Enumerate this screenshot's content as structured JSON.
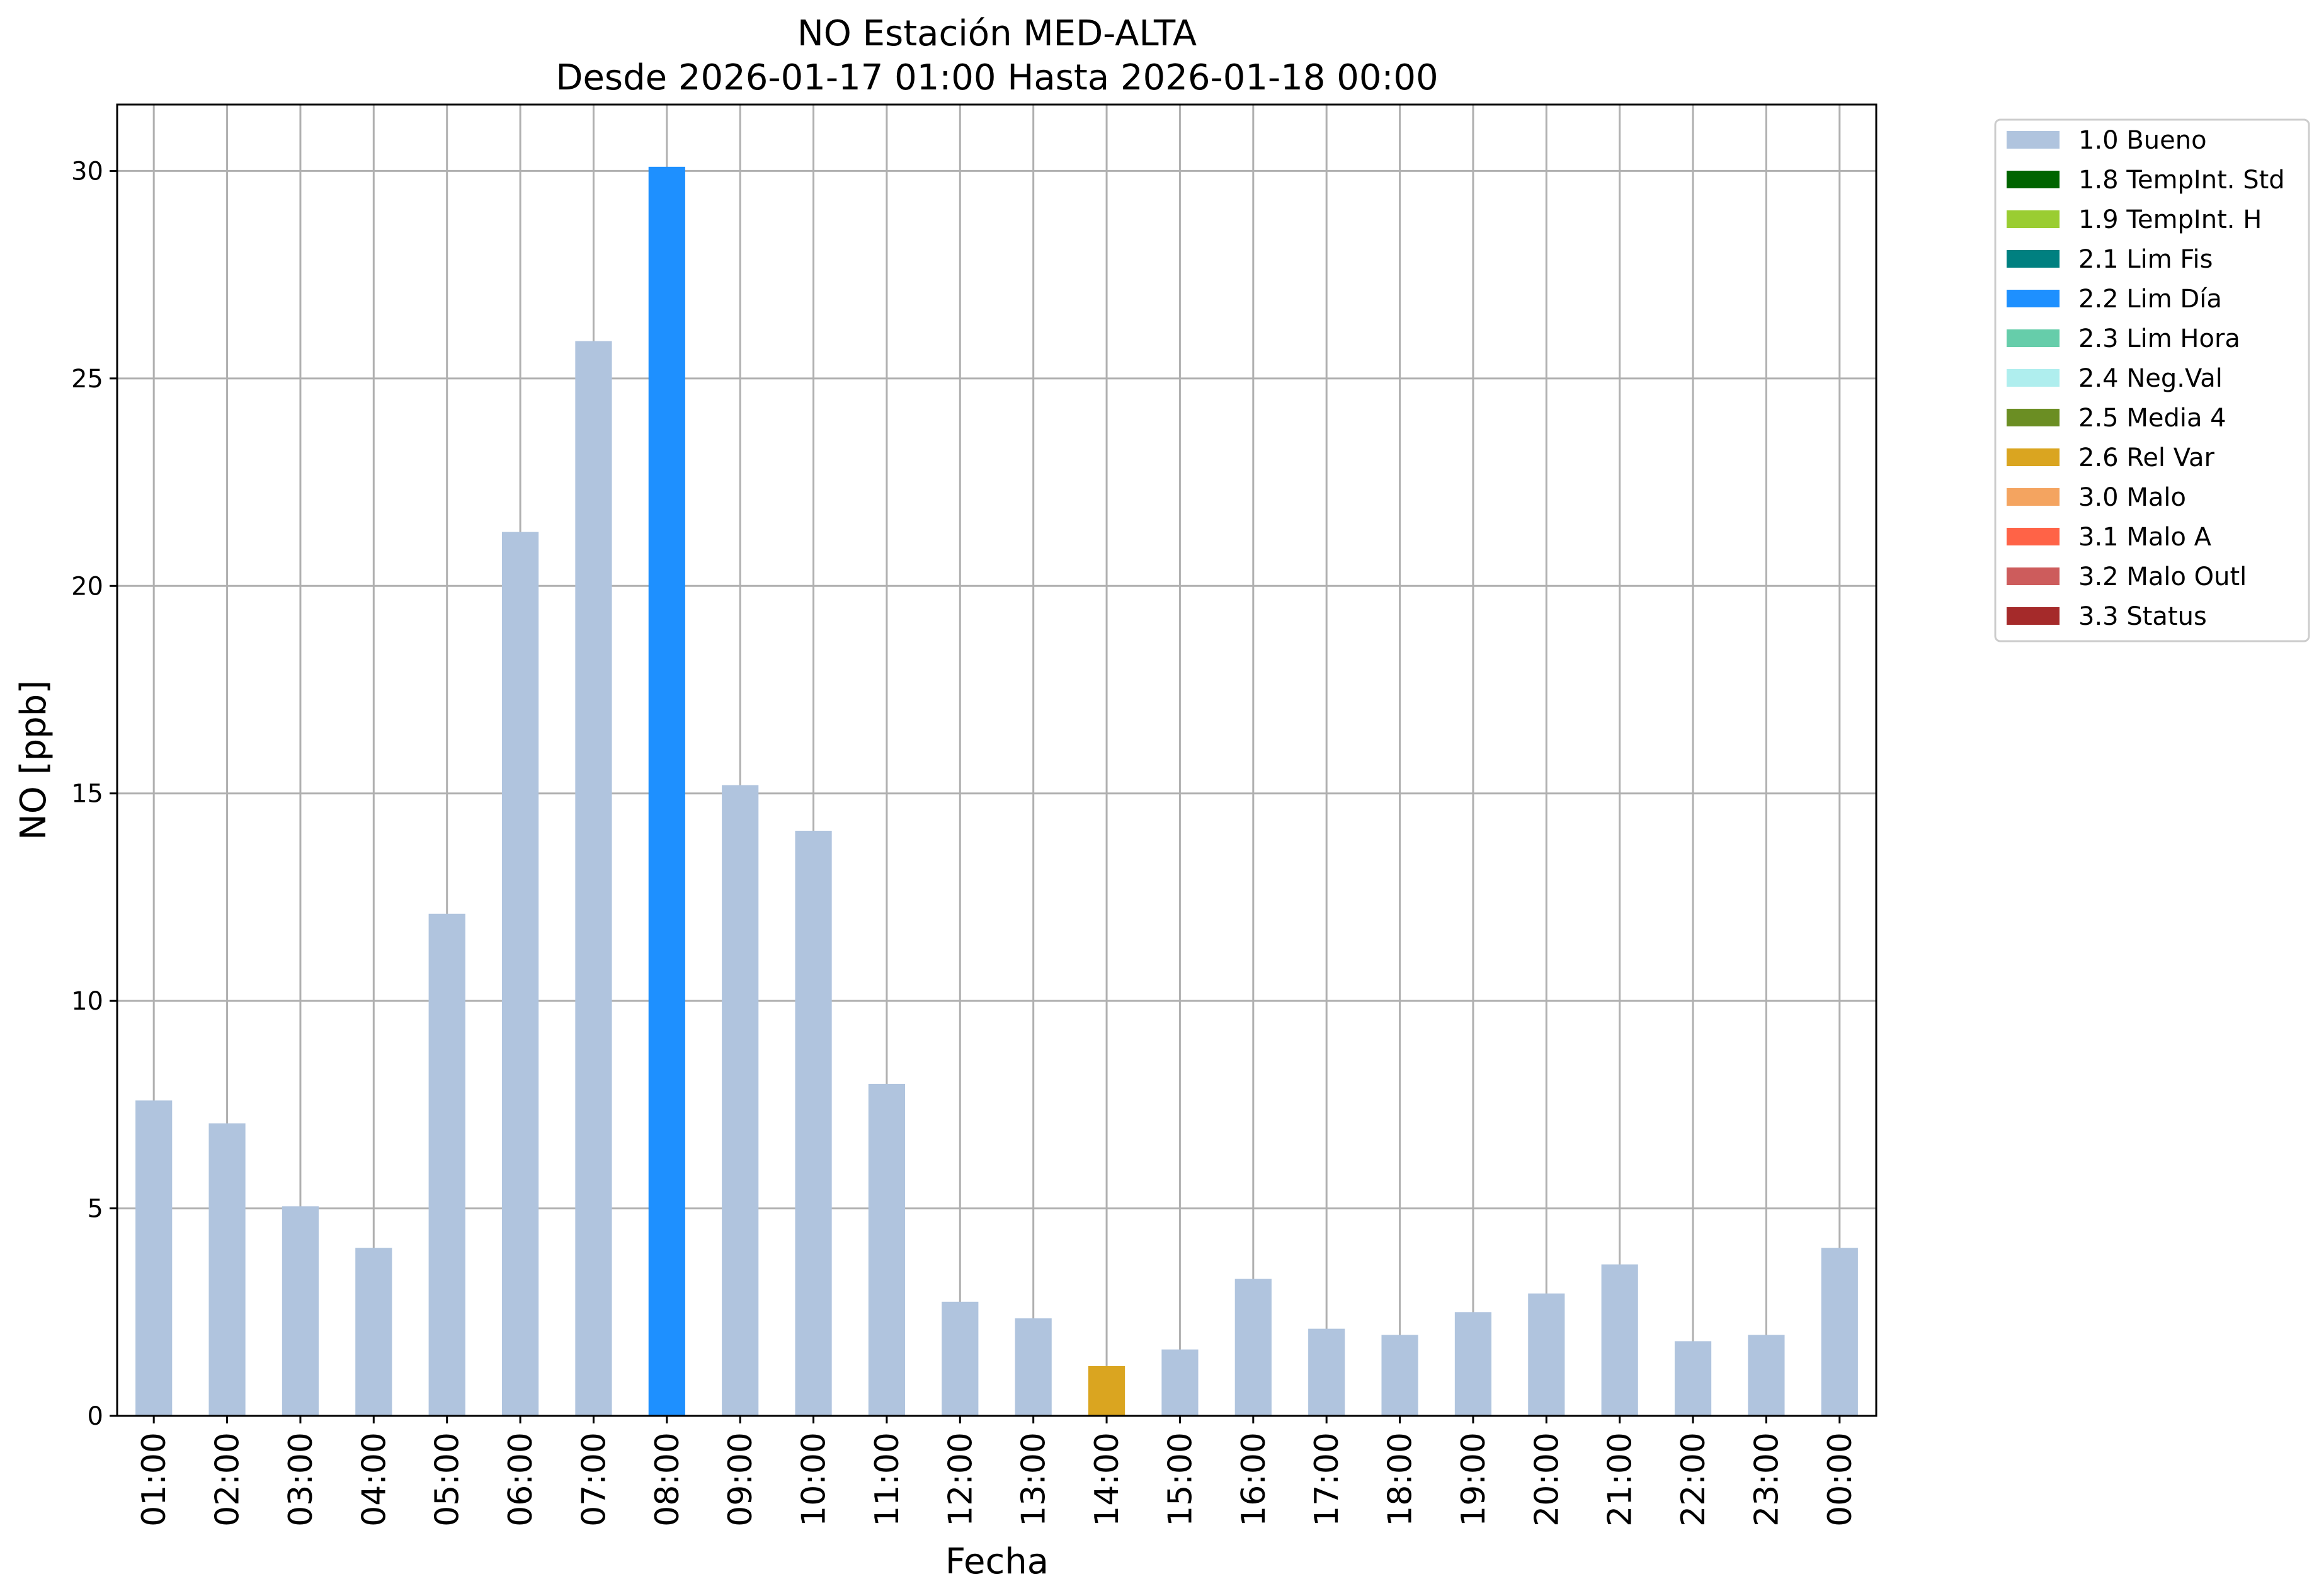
{
  "chart_data": {
    "type": "bar",
    "title": "NO Estación MED-ALTA",
    "subtitle": "Desde 2026-01-17 01:00 Hasta 2026-01-18 00:00",
    "xlabel": "Fecha",
    "ylabel": "NO [ppb]",
    "ylim": [
      0,
      31.6
    ],
    "yticks": [
      0,
      5,
      10,
      15,
      20,
      25,
      30
    ],
    "grid": true,
    "legend_position": "outside-top-right",
    "categories": [
      "01:00",
      "02:00",
      "03:00",
      "04:00",
      "05:00",
      "06:00",
      "07:00",
      "08:00",
      "09:00",
      "10:00",
      "11:00",
      "12:00",
      "13:00",
      "14:00",
      "15:00",
      "16:00",
      "17:00",
      "18:00",
      "19:00",
      "20:00",
      "21:00",
      "22:00",
      "23:00",
      "00:00"
    ],
    "values": [
      7.6,
      7.05,
      5.05,
      4.05,
      12.1,
      21.3,
      25.9,
      30.1,
      15.2,
      14.1,
      8.0,
      2.75,
      2.35,
      1.2,
      1.6,
      3.3,
      2.1,
      1.95,
      2.5,
      2.95,
      3.65,
      1.8,
      1.95,
      4.05
    ],
    "flags": [
      "1.0 Bueno",
      "1.0 Bueno",
      "1.0 Bueno",
      "1.0 Bueno",
      "1.0 Bueno",
      "1.0 Bueno",
      "1.0 Bueno",
      "2.2 Lim Día",
      "1.0 Bueno",
      "1.0 Bueno",
      "1.0 Bueno",
      "1.0 Bueno",
      "1.0 Bueno",
      "2.6 Rel Var",
      "1.0 Bueno",
      "1.0 Bueno",
      "1.0 Bueno",
      "1.0 Bueno",
      "1.0 Bueno",
      "1.0 Bueno",
      "1.0 Bueno",
      "1.0 Bueno",
      "1.0 Bueno",
      "1.0 Bueno"
    ],
    "legend": [
      {
        "label": "1.0 Bueno",
        "color": "#b0c4de"
      },
      {
        "label": "1.8 TempInt. Std",
        "color": "#006400"
      },
      {
        "label": "1.9 TempInt. H",
        "color": "#9acd32"
      },
      {
        "label": "2.1 Lim Fis",
        "color": "#008080"
      },
      {
        "label": "2.2 Lim Día",
        "color": "#1e90ff"
      },
      {
        "label": "2.3 Lim Hora",
        "color": "#66cdaa"
      },
      {
        "label": "2.4 Neg.Val",
        "color": "#afeeee"
      },
      {
        "label": "2.5 Media 4",
        "color": "#6b8e23"
      },
      {
        "label": "2.6 Rel Var",
        "color": "#daa520"
      },
      {
        "label": "3.0 Malo",
        "color": "#f4a460"
      },
      {
        "label": "3.1 Malo A",
        "color": "#ff6347"
      },
      {
        "label": "3.2 Malo Outl",
        "color": "#cd5c5c"
      },
      {
        "label": "3.3 Status",
        "color": "#a52a2a"
      }
    ]
  }
}
